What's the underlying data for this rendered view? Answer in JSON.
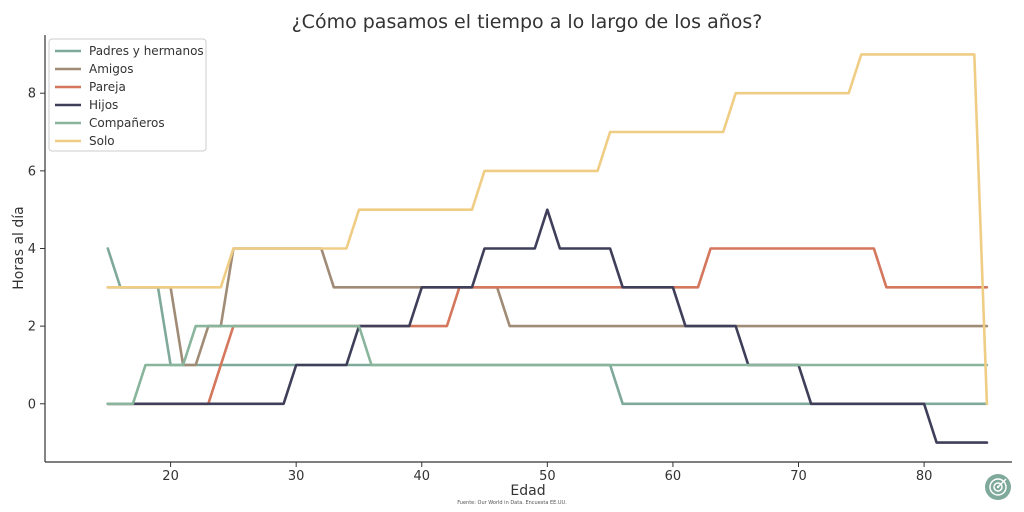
{
  "chart_data": {
    "type": "line",
    "title": "¿Cómo pasamos el tiempo a lo largo de los años?",
    "xlabel": "Edad",
    "ylabel": "Horas al día",
    "xlim": [
      10,
      87
    ],
    "ylim": [
      -1.5,
      9.5
    ],
    "xticks": [
      "20",
      "30",
      "40",
      "50",
      "60",
      "70",
      "80"
    ],
    "yticks": [
      "0",
      "2",
      "4",
      "6",
      "8"
    ],
    "legend_position": "top-left",
    "grid": false,
    "x": [
      15,
      16,
      17,
      18,
      19,
      20,
      21,
      22,
      23,
      24,
      25,
      26,
      27,
      28,
      29,
      30,
      31,
      32,
      33,
      34,
      35,
      36,
      37,
      38,
      39,
      40,
      41,
      42,
      43,
      44,
      45,
      46,
      47,
      48,
      49,
      50,
      51,
      52,
      53,
      54,
      55,
      56,
      57,
      58,
      59,
      60,
      61,
      62,
      63,
      64,
      65,
      66,
      67,
      68,
      69,
      70,
      71,
      72,
      73,
      74,
      75,
      76,
      77,
      78,
      79,
      80,
      81,
      82,
      83,
      84,
      85
    ],
    "series": [
      {
        "name": "Padres y hermanos",
        "color": "#7fa99a",
        "values": [
          4,
          3,
          3,
          3,
          3,
          1,
          1,
          1,
          1,
          1,
          1,
          1,
          1,
          1,
          1,
          1,
          1,
          1,
          1,
          1,
          1,
          1,
          1,
          1,
          1,
          1,
          1,
          1,
          1,
          1,
          1,
          1,
          1,
          1,
          1,
          1,
          1,
          1,
          1,
          1,
          1,
          0,
          0,
          0,
          0,
          0,
          0,
          0,
          0,
          0,
          0,
          0,
          0,
          0,
          0,
          0,
          0,
          0,
          0,
          0,
          0,
          0,
          0,
          0,
          0,
          0,
          0,
          0,
          0,
          0,
          0
        ]
      },
      {
        "name": "Amigos",
        "color": "#a08c76",
        "values": [
          3,
          3,
          3,
          3,
          3,
          3,
          1,
          1,
          2,
          2,
          4,
          4,
          4,
          4,
          4,
          4,
          4,
          4,
          3,
          3,
          3,
          3,
          3,
          3,
          3,
          3,
          3,
          3,
          3,
          3,
          3,
          3,
          2,
          2,
          2,
          2,
          2,
          2,
          2,
          2,
          2,
          2,
          2,
          2,
          2,
          2,
          2,
          2,
          2,
          2,
          2,
          2,
          2,
          2,
          2,
          2,
          2,
          2,
          2,
          2,
          2,
          2,
          2,
          2,
          2,
          2,
          2,
          2,
          2,
          2,
          2
        ]
      },
      {
        "name": "Pareja",
        "color": "#d4775d",
        "values": [
          0,
          0,
          0,
          0,
          0,
          0,
          0,
          0,
          0,
          1,
          2,
          2,
          2,
          2,
          2,
          2,
          2,
          2,
          2,
          2,
          2,
          2,
          2,
          2,
          2,
          2,
          2,
          2,
          3,
          3,
          3,
          3,
          3,
          3,
          3,
          3,
          3,
          3,
          3,
          3,
          3,
          3,
          3,
          3,
          3,
          3,
          3,
          3,
          4,
          4,
          4,
          4,
          4,
          4,
          4,
          4,
          4,
          4,
          4,
          4,
          4,
          4,
          3,
          3,
          3,
          3,
          3,
          3,
          3,
          3,
          3
        ]
      },
      {
        "name": "Hijos",
        "color": "#3f3f5a",
        "values": [
          0,
          0,
          0,
          0,
          0,
          0,
          0,
          0,
          0,
          0,
          0,
          0,
          0,
          0,
          0,
          1,
          1,
          1,
          1,
          1,
          2,
          2,
          2,
          2,
          2,
          3,
          3,
          3,
          3,
          3,
          4,
          4,
          4,
          4,
          4,
          5,
          4,
          4,
          4,
          4,
          4,
          3,
          3,
          3,
          3,
          3,
          2,
          2,
          2,
          2,
          2,
          1,
          1,
          1,
          1,
          1,
          0,
          0,
          0,
          0,
          0,
          0,
          0,
          0,
          0,
          0,
          -1,
          -1,
          -1,
          -1,
          -1
        ]
      },
      {
        "name": "Compañeros",
        "color": "#88b59c",
        "values": [
          0,
          0,
          0,
          1,
          1,
          1,
          1,
          2,
          2,
          2,
          2,
          2,
          2,
          2,
          2,
          2,
          2,
          2,
          2,
          2,
          2,
          1,
          1,
          1,
          1,
          1,
          1,
          1,
          1,
          1,
          1,
          1,
          1,
          1,
          1,
          1,
          1,
          1,
          1,
          1,
          1,
          1,
          1,
          1,
          1,
          1,
          1,
          1,
          1,
          1,
          1,
          1,
          1,
          1,
          1,
          1,
          1,
          1,
          1,
          1,
          1,
          1,
          1,
          1,
          1,
          1,
          1,
          1,
          1,
          1,
          1
        ]
      },
      {
        "name": "Solo",
        "color": "#f0cd85",
        "values": [
          3,
          3,
          3,
          3,
          3,
          3,
          3,
          3,
          3,
          3,
          4,
          4,
          4,
          4,
          4,
          4,
          4,
          4,
          4,
          4,
          5,
          5,
          5,
          5,
          5,
          5,
          5,
          5,
          5,
          5,
          6,
          6,
          6,
          6,
          6,
          6,
          6,
          6,
          6,
          6,
          7,
          7,
          7,
          7,
          7,
          7,
          7,
          7,
          7,
          7,
          8,
          8,
          8,
          8,
          8,
          8,
          8,
          8,
          8,
          8,
          9,
          9,
          9,
          9,
          9,
          9,
          9,
          9,
          9,
          9,
          0
        ]
      }
    ]
  },
  "source_text": "Fuente: Our World in Data. Encuesta EE.UU.",
  "logo_icon": "target-logo-icon"
}
